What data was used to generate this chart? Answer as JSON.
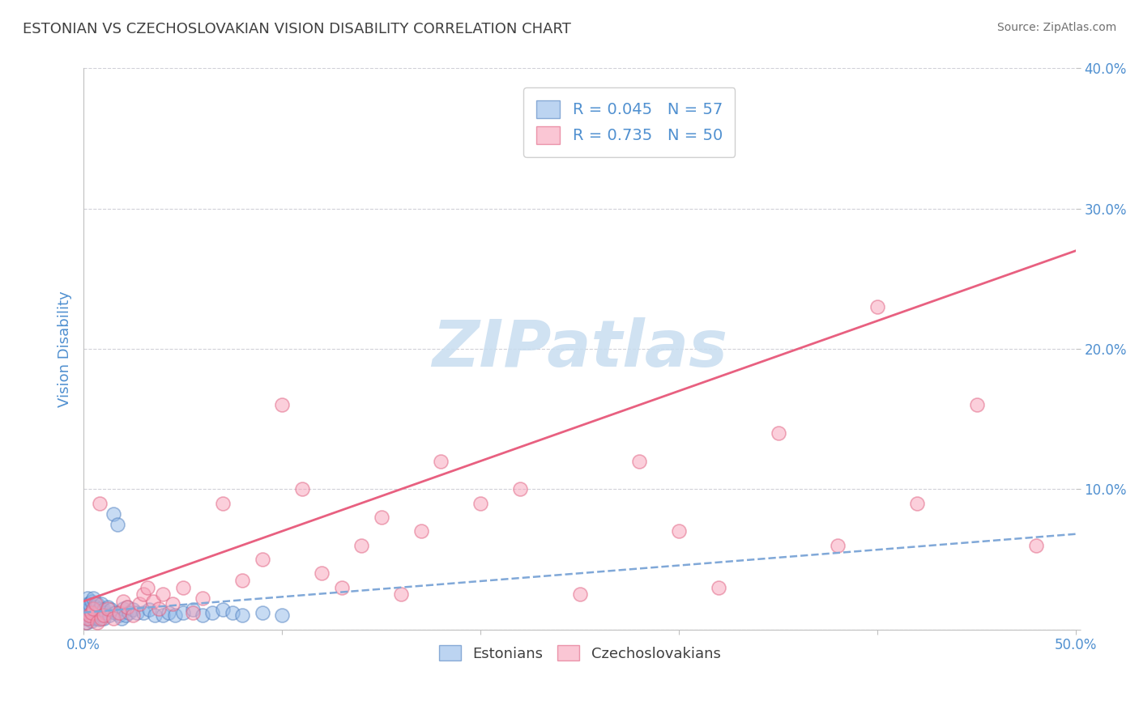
{
  "title": "ESTONIAN VS CZECHOSLOVAKIAN VISION DISABILITY CORRELATION CHART",
  "source": "Source: ZipAtlas.com",
  "ylabel": "Vision Disability",
  "xlim": [
    0.0,
    0.5
  ],
  "ylim": [
    0.0,
    0.4
  ],
  "xticks": [
    0.0,
    0.1,
    0.2,
    0.3,
    0.4,
    0.5
  ],
  "yticks": [
    0.0,
    0.1,
    0.2,
    0.3,
    0.4
  ],
  "xticklabels_show": [
    "0.0%",
    "",
    "",
    "",
    "",
    "50.0%"
  ],
  "yticklabels_right": [
    "",
    "10.0%",
    "20.0%",
    "30.0%",
    "40.0%"
  ],
  "blue_color": "#90b8e8",
  "pink_color": "#f8a0b8",
  "blue_edge_color": "#5080c0",
  "pink_edge_color": "#e06080",
  "blue_trend_color": "#80a8d8",
  "pink_trend_color": "#e86080",
  "watermark_text": "ZIPatlas",
  "watermark_color": "#c8ddf0",
  "title_color": "#404040",
  "tick_color": "#5090d0",
  "axis_color": "#c0c0c0",
  "grid_color": "#d0d0d8",
  "R_estonian": 0.045,
  "N_estonian": 57,
  "R_czech": 0.735,
  "N_czech": 50,
  "estonian_x": [
    0.0005,
    0.001,
    0.001,
    0.0015,
    0.002,
    0.002,
    0.002,
    0.003,
    0.003,
    0.003,
    0.004,
    0.004,
    0.004,
    0.005,
    0.005,
    0.005,
    0.006,
    0.006,
    0.007,
    0.007,
    0.007,
    0.008,
    0.008,
    0.009,
    0.009,
    0.01,
    0.01,
    0.011,
    0.012,
    0.013,
    0.014,
    0.015,
    0.016,
    0.017,
    0.018,
    0.019,
    0.02,
    0.021,
    0.022,
    0.023,
    0.025,
    0.027,
    0.03,
    0.033,
    0.036,
    0.04,
    0.043,
    0.046,
    0.05,
    0.055,
    0.06,
    0.065,
    0.07,
    0.075,
    0.08,
    0.09,
    0.1
  ],
  "estonian_y": [
    0.01,
    0.008,
    0.015,
    0.005,
    0.012,
    0.018,
    0.022,
    0.008,
    0.014,
    0.018,
    0.006,
    0.012,
    0.02,
    0.008,
    0.014,
    0.022,
    0.01,
    0.016,
    0.008,
    0.013,
    0.018,
    0.007,
    0.015,
    0.01,
    0.018,
    0.008,
    0.014,
    0.012,
    0.016,
    0.01,
    0.014,
    0.082,
    0.012,
    0.075,
    0.01,
    0.008,
    0.015,
    0.01,
    0.016,
    0.012,
    0.014,
    0.012,
    0.012,
    0.014,
    0.01,
    0.01,
    0.012,
    0.01,
    0.012,
    0.014,
    0.01,
    0.012,
    0.014,
    0.012,
    0.01,
    0.012,
    0.01
  ],
  "czech_x": [
    0.001,
    0.002,
    0.003,
    0.004,
    0.005,
    0.006,
    0.007,
    0.008,
    0.009,
    0.01,
    0.012,
    0.015,
    0.018,
    0.02,
    0.022,
    0.025,
    0.028,
    0.03,
    0.032,
    0.035,
    0.038,
    0.04,
    0.045,
    0.05,
    0.055,
    0.06,
    0.07,
    0.08,
    0.09,
    0.1,
    0.11,
    0.12,
    0.13,
    0.14,
    0.15,
    0.16,
    0.17,
    0.18,
    0.2,
    0.22,
    0.25,
    0.28,
    0.3,
    0.32,
    0.35,
    0.38,
    0.4,
    0.42,
    0.45,
    0.48
  ],
  "czech_y": [
    0.005,
    0.008,
    0.01,
    0.012,
    0.015,
    0.018,
    0.005,
    0.09,
    0.008,
    0.01,
    0.015,
    0.008,
    0.012,
    0.02,
    0.016,
    0.01,
    0.018,
    0.025,
    0.03,
    0.02,
    0.015,
    0.025,
    0.018,
    0.03,
    0.012,
    0.022,
    0.09,
    0.035,
    0.05,
    0.16,
    0.1,
    0.04,
    0.03,
    0.06,
    0.08,
    0.025,
    0.07,
    0.12,
    0.09,
    0.1,
    0.025,
    0.12,
    0.07,
    0.03,
    0.14,
    0.06,
    0.23,
    0.09,
    0.16,
    0.06
  ],
  "czech_trend_x0": 0.0,
  "czech_trend_y0": 0.02,
  "czech_trend_x1": 0.5,
  "czech_trend_y1": 0.27,
  "est_trend_x0": 0.0,
  "est_trend_y0": 0.012,
  "est_trend_x1": 0.5,
  "est_trend_y1": 0.068
}
